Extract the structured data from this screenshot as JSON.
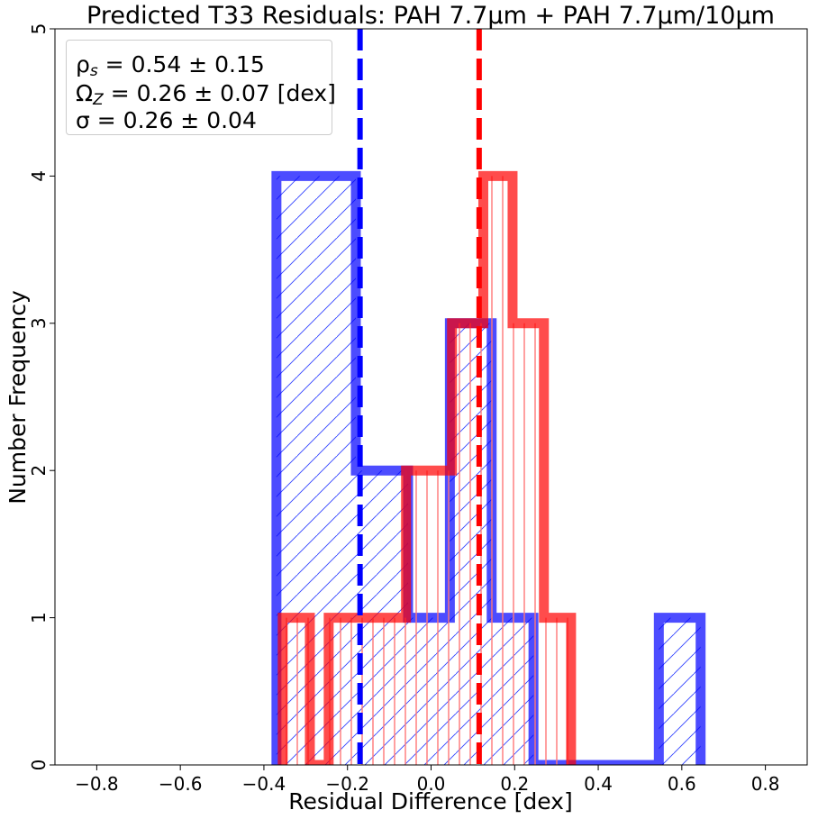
{
  "chart_data": {
    "type": "histogram",
    "title": "Predicted T33 Residuals: PAH 7.7µm + PAH 7.7µm/10µm",
    "xlabel": "Residual Difference [dex]",
    "ylabel": "Number Frequency",
    "xlim": [
      -0.9,
      0.9
    ],
    "ylim": [
      0,
      5
    ],
    "xticks": [
      -0.8,
      -0.6,
      -0.4,
      -0.2,
      0.0,
      0.2,
      0.4,
      0.6,
      0.8
    ],
    "xtick_labels": [
      "−0.8",
      "−0.6",
      "−0.4",
      "−0.2",
      "0.0",
      "0.2",
      "0.4",
      "0.6",
      "0.8"
    ],
    "yticks": [
      0,
      1,
      2,
      3,
      4,
      5
    ],
    "ytick_labels": [
      "0",
      "1",
      "2",
      "3",
      "4",
      "5"
    ],
    "grid": false,
    "series": [
      {
        "color": "#0000ff",
        "hatch": "diagonal",
        "bin_edges": [
          -0.37,
          -0.18,
          -0.055,
          0.045,
          0.145,
          0.245,
          0.345,
          0.445,
          0.545,
          0.645
        ],
        "counts": [
          4,
          2,
          1,
          3,
          1,
          0,
          0,
          0,
          1
        ],
        "mean_line": -0.17
      },
      {
        "color": "#ff0000",
        "hatch": "vertical",
        "bin_edges": [
          -0.355,
          -0.29,
          -0.245,
          -0.06,
          0.05,
          0.125,
          0.195,
          0.27,
          0.335
        ],
        "counts": [
          1,
          0,
          1,
          2,
          3,
          4,
          3,
          1
        ],
        "mean_line": 0.115
      }
    ],
    "annotations": {
      "rho": "ρ",
      "rho_sub": "s",
      "rho_value": " = 0.54 ± 0.15",
      "omega": "Ω",
      "omega_sub": "Z",
      "omega_value": " = 0.26 ± 0.07 [dex]",
      "sigma": "σ = 0.26 ± 0.04"
    },
    "legend_position": "upper-left"
  }
}
